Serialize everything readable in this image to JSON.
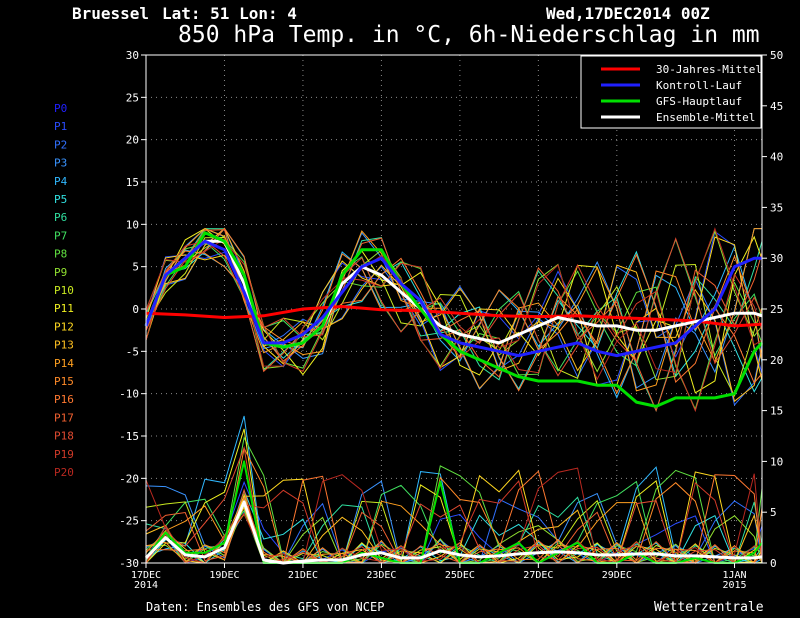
{
  "header": {
    "location": "Bruessel",
    "coords": "Lat: 51 Lon: 4",
    "run": "Wed,17DEC2014 00Z",
    "title": "850 hPa Temp. in °C, 6h-Niederschlag in mm"
  },
  "footer": {
    "source": "Daten: Ensembles des GFS von NCEP",
    "brand": "Wetterzentrale"
  },
  "colors": {
    "background": "#000000",
    "axes": "#ffffff",
    "grid": "#8a8a8a",
    "climate": "#ff0000",
    "control": "#2020ff",
    "main": "#00e000",
    "mean": "#ffffff"
  },
  "members": [
    {
      "name": "P0",
      "color": "#2020ff"
    },
    {
      "name": "P1",
      "color": "#2a4cff"
    },
    {
      "name": "P2",
      "color": "#3070ff"
    },
    {
      "name": "P3",
      "color": "#3a94ff"
    },
    {
      "name": "P4",
      "color": "#30b8ff"
    },
    {
      "name": "P5",
      "color": "#30e0e0"
    },
    {
      "name": "P6",
      "color": "#30e0a0"
    },
    {
      "name": "P7",
      "color": "#40e060"
    },
    {
      "name": "P8",
      "color": "#60e040"
    },
    {
      "name": "P9",
      "color": "#90e030"
    },
    {
      "name": "P10",
      "color": "#c8e820"
    },
    {
      "name": "P11",
      "color": "#f0f020"
    },
    {
      "name": "P12",
      "color": "#ffd820"
    },
    {
      "name": "P13",
      "color": "#ffc020"
    },
    {
      "name": "P14",
      "color": "#ffa020"
    },
    {
      "name": "P15",
      "color": "#ff8a28"
    },
    {
      "name": "P16",
      "color": "#ff7830"
    },
    {
      "name": "P17",
      "color": "#f06030"
    },
    {
      "name": "P18",
      "color": "#e04a30"
    },
    {
      "name": "P19",
      "color": "#d03a28"
    },
    {
      "name": "P20",
      "color": "#b82820"
    }
  ],
  "chart_data": {
    "type": "line",
    "x_tick_labels": [
      "17DEC 2014",
      "19DEC",
      "21DEC",
      "23DEC",
      "25DEC",
      "27DEC",
      "29DEC",
      "1JAN 2015"
    ],
    "x_tick_days": [
      0,
      2,
      4,
      6,
      8,
      10,
      12,
      15
    ],
    "xlim_days": [
      0,
      15.7
    ],
    "ylim_left": [
      -30,
      30
    ],
    "ylim_right": [
      0,
      50
    ],
    "left_ticks": [
      -30,
      -25,
      -20,
      -15,
      -10,
      -5,
      0,
      5,
      10,
      15,
      20,
      25,
      30
    ],
    "right_ticks": [
      0,
      5,
      10,
      15,
      20,
      25,
      30,
      35,
      40,
      45,
      50
    ],
    "grid": true,
    "legend_position": "top-right",
    "legend": [
      {
        "label": "30-Jahres-Mittel",
        "color": "#ff0000"
      },
      {
        "label": "Kontroll-Lauf",
        "color": "#2020ff"
      },
      {
        "label": "GFS-Hauptlauf",
        "color": "#00e000"
      },
      {
        "label": "Ensemble-Mittel",
        "color": "#ffffff"
      }
    ],
    "series": [
      {
        "name": "30-Jahres-Mittel",
        "axis": "left",
        "color": "#ff0000",
        "width": 3,
        "x": [
          0,
          1,
          2,
          3,
          4,
          5,
          6,
          7,
          8,
          9,
          10,
          11,
          12,
          13,
          14,
          15,
          15.7
        ],
        "y": [
          -0.5,
          -0.7,
          -1.0,
          -0.8,
          0.0,
          0.3,
          -0.1,
          -0.2,
          -0.5,
          -0.8,
          -0.9,
          -0.8,
          -1.0,
          -1.2,
          -1.4,
          -2.0,
          -1.8
        ]
      },
      {
        "name": "Ensemble-Mittel",
        "axis": "left",
        "color": "#ffffff",
        "width": 3,
        "x": [
          0,
          0.5,
          1,
          1.5,
          2,
          2.5,
          3,
          3.5,
          4,
          4.5,
          5,
          5.5,
          6,
          6.5,
          7,
          7.5,
          8,
          8.5,
          9,
          9.5,
          10,
          10.5,
          11,
          11.5,
          12,
          12.5,
          13,
          13.5,
          14,
          14.5,
          15,
          15.5,
          15.7
        ],
        "y": [
          -2,
          4,
          6,
          8,
          8,
          3,
          -4,
          -4.5,
          -4,
          -2,
          3,
          5,
          4,
          2,
          0,
          -2,
          -3,
          -3.5,
          -4,
          -3,
          -2,
          -1,
          -1.5,
          -2,
          -2,
          -2.5,
          -2.5,
          -2,
          -1.5,
          -1,
          -0.5,
          -0.5,
          -0.8
        ]
      },
      {
        "name": "GFS-Hauptlauf",
        "axis": "left",
        "color": "#00e000",
        "width": 3,
        "x": [
          0,
          0.5,
          1,
          1.5,
          2,
          2.5,
          3,
          3.5,
          4,
          4.5,
          5,
          5.5,
          6,
          6.5,
          7,
          7.5,
          8,
          8.5,
          9,
          9.5,
          10,
          10.5,
          11,
          11.5,
          12,
          12.5,
          13,
          13.5,
          14,
          14.5,
          15,
          15.5,
          15.7
        ],
        "y": [
          -2,
          4,
          5,
          9,
          8,
          4,
          -4,
          -4.5,
          -4,
          -2,
          4,
          7,
          7,
          3,
          0,
          -3,
          -5,
          -6,
          -7,
          -8,
          -8.5,
          -8.5,
          -8.5,
          -9,
          -9,
          -11,
          -11.5,
          -10.5,
          -10.5,
          -10.5,
          -10,
          -5,
          -4
        ]
      },
      {
        "name": "Kontroll-Lauf",
        "axis": "left",
        "color": "#2020ff",
        "width": 3,
        "x": [
          0,
          0.5,
          1,
          1.5,
          2,
          2.5,
          3,
          3.5,
          4,
          4.5,
          5,
          5.5,
          6,
          6.5,
          7,
          7.5,
          8,
          8.5,
          9,
          9.5,
          10,
          10.5,
          11,
          11.5,
          12,
          12.5,
          13,
          13.5,
          14,
          14.5,
          15,
          15.5,
          15.7
        ],
        "y": [
          -2,
          4,
          6,
          8,
          7,
          2,
          -4,
          -4,
          -3,
          -1,
          2,
          5,
          6,
          3,
          1,
          -3,
          -4,
          -4.5,
          -5,
          -5.5,
          -5,
          -4.5,
          -4,
          -5,
          -5.5,
          -5,
          -4.5,
          -4,
          -2,
          0,
          5,
          6,
          6
        ]
      },
      {
        "name": "Precip GFS-Hauptlauf",
        "axis": "right",
        "color": "#00e000",
        "width": 2,
        "x": [
          0,
          0.5,
          1,
          1.5,
          2,
          2.5,
          3,
          3.5,
          4,
          4.5,
          5,
          5.5,
          6,
          6.5,
          7,
          7.5,
          8,
          8.5,
          9,
          9.5,
          10,
          10.5,
          11,
          11.5,
          12,
          12.5,
          13,
          13.5,
          14,
          14.5,
          15,
          15.5,
          15.7
        ],
        "y": [
          0.5,
          3,
          1,
          1,
          2,
          10,
          0,
          0,
          0,
          0,
          0,
          1,
          0.5,
          0,
          0,
          8,
          0,
          0,
          1,
          2,
          0,
          1,
          2,
          0,
          0,
          1,
          0,
          0,
          0.5,
          0,
          0,
          1,
          2
        ]
      },
      {
        "name": "Precip Ensemble-Mittel",
        "axis": "right",
        "color": "#ffffff",
        "width": 3,
        "x": [
          0,
          0.5,
          1,
          1.5,
          2,
          2.5,
          3,
          3.5,
          4,
          4.5,
          5,
          5.5,
          6,
          6.5,
          7,
          7.5,
          8,
          8.5,
          9,
          9.5,
          10,
          10.5,
          11,
          11.5,
          12,
          12.5,
          13,
          13.5,
          14,
          14.5,
          15,
          15.5,
          15.7
        ],
        "y": [
          0.5,
          2.5,
          0.8,
          0.6,
          1.5,
          6,
          0.3,
          0,
          0.2,
          0.3,
          0.3,
          0.8,
          1,
          0.5,
          0.5,
          1.2,
          0.8,
          0.6,
          0.7,
          0.9,
          1,
          1.1,
          1,
          0.8,
          0.8,
          0.9,
          0.9,
          0.7,
          0.7,
          0.6,
          0.5,
          0.5,
          0.6
        ]
      }
    ]
  }
}
